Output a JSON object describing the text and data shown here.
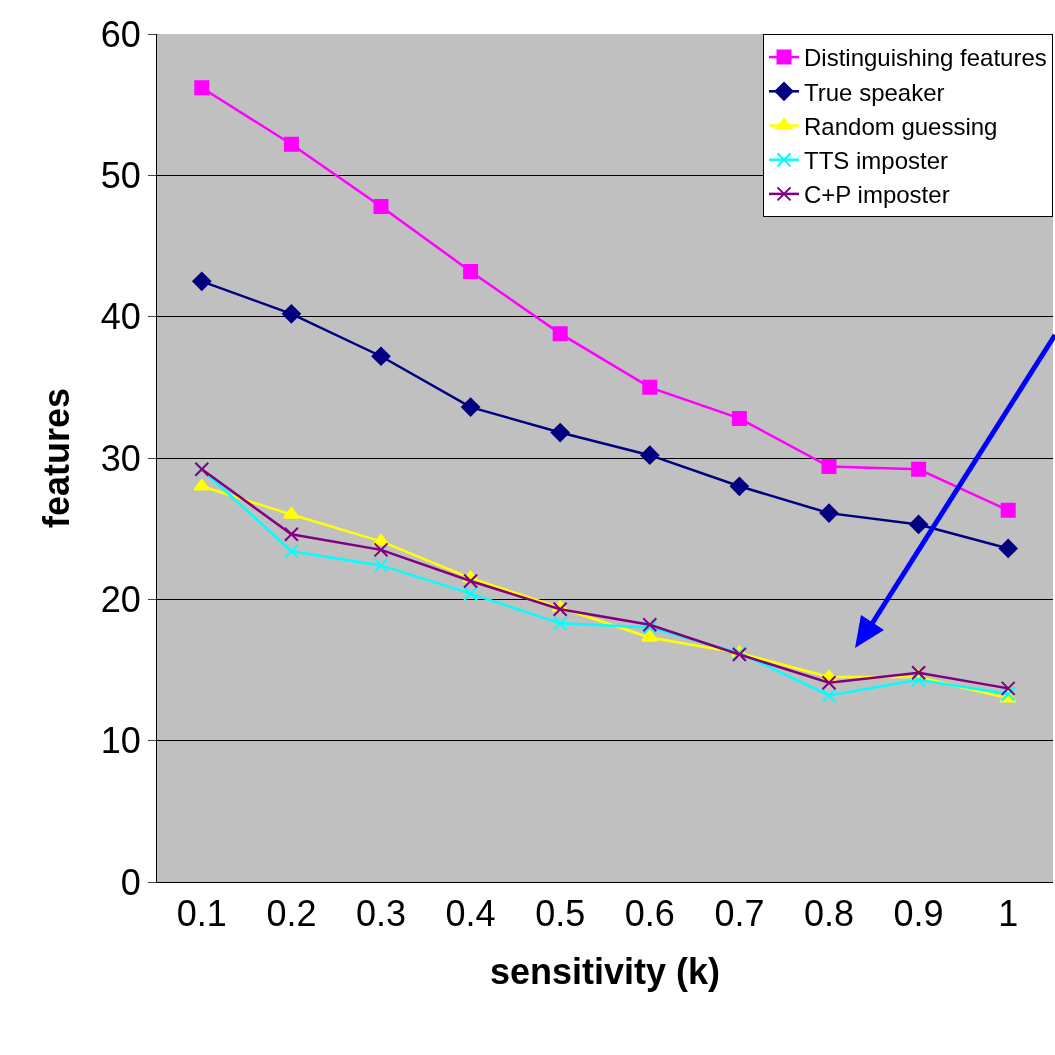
{
  "chart_data": {
    "type": "line",
    "xlabel": "sensitivity (k)",
    "ylabel": "features",
    "categories": [
      "0.1",
      "0.2",
      "0.3",
      "0.4",
      "0.5",
      "0.6",
      "0.7",
      "0.8",
      "0.9",
      "1"
    ],
    "ylim": [
      0,
      60
    ],
    "yticks": [
      0,
      10,
      20,
      30,
      40,
      50,
      60
    ],
    "grid": "y",
    "legend": "top right",
    "series": [
      {
        "name": "Distinguishing features",
        "color": "#ff00ff",
        "marker": "square",
        "values": [
          56.2,
          52.2,
          47.8,
          43.2,
          38.8,
          35.0,
          32.8,
          29.4,
          29.2,
          26.3
        ]
      },
      {
        "name": "True speaker",
        "color": "#000080",
        "marker": "diamond",
        "values": [
          42.5,
          40.2,
          37.2,
          33.6,
          31.8,
          30.2,
          28.0,
          26.1,
          25.3,
          23.6
        ]
      },
      {
        "name": "Random guessing",
        "color": "#ffff00",
        "marker": "triangle",
        "values": [
          28.0,
          26.0,
          24.1,
          21.5,
          19.4,
          17.3,
          16.2,
          14.5,
          14.5,
          13.0
        ]
      },
      {
        "name": "TTS imposter",
        "color": "#00ffff",
        "marker": "cross",
        "values": [
          29.2,
          23.4,
          22.4,
          20.4,
          18.3,
          18.0,
          16.2,
          13.2,
          14.3,
          13.3
        ]
      },
      {
        "name": "C+P imposter",
        "color": "#800080",
        "marker": "cross",
        "values": [
          29.2,
          24.6,
          23.5,
          21.3,
          19.3,
          18.2,
          16.1,
          14.1,
          14.8,
          13.7
        ]
      }
    ]
  }
}
